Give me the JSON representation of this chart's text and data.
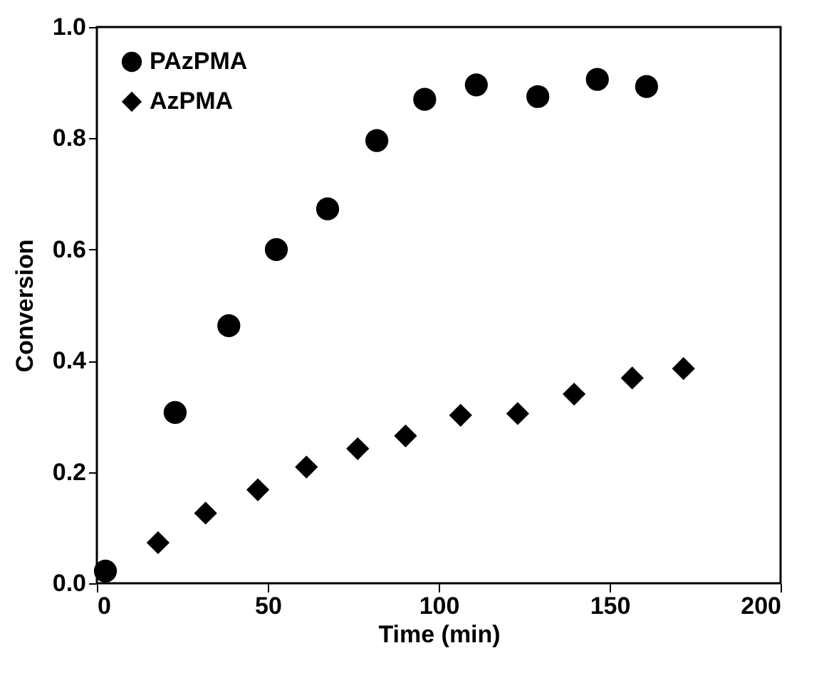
{
  "chart_data": {
    "type": "scatter",
    "xlabel": "Time (min)",
    "ylabel": "Conversion",
    "xlim": [
      0,
      200
    ],
    "xticks": [
      0,
      50,
      100,
      150,
      200
    ],
    "ylim": [
      0,
      1
    ],
    "yticks": [
      {
        "value": 0,
        "label": "0.0"
      },
      0.2,
      0.4,
      0.6,
      0.8,
      {
        "value": 1,
        "label": "1.0"
      }
    ],
    "grid": false,
    "legend": "top left",
    "series": [
      {
        "name": "PAzPMA",
        "color": "#000000",
        "marker": "circle",
        "x": [
          2.5,
          22.9,
          38.6,
          52.5,
          67.5,
          81.9,
          95.9,
          111,
          129,
          146.4,
          160.8
        ],
        "values": [
          0.022,
          0.307,
          0.463,
          0.6,
          0.673,
          0.796,
          0.87,
          0.896,
          0.875,
          0.906,
          0.893
        ]
      },
      {
        "name": "AzPMA",
        "color": "#000000",
        "marker": "diamond",
        "x": [
          17.9,
          31.8,
          47.1,
          61.3,
          76.3,
          90.3,
          106.4,
          123.1,
          139.6,
          156.6,
          171.6
        ],
        "values": [
          0.073,
          0.126,
          0.168,
          0.209,
          0.242,
          0.265,
          0.302,
          0.305,
          0.34,
          0.369,
          0.386
        ]
      }
    ]
  }
}
